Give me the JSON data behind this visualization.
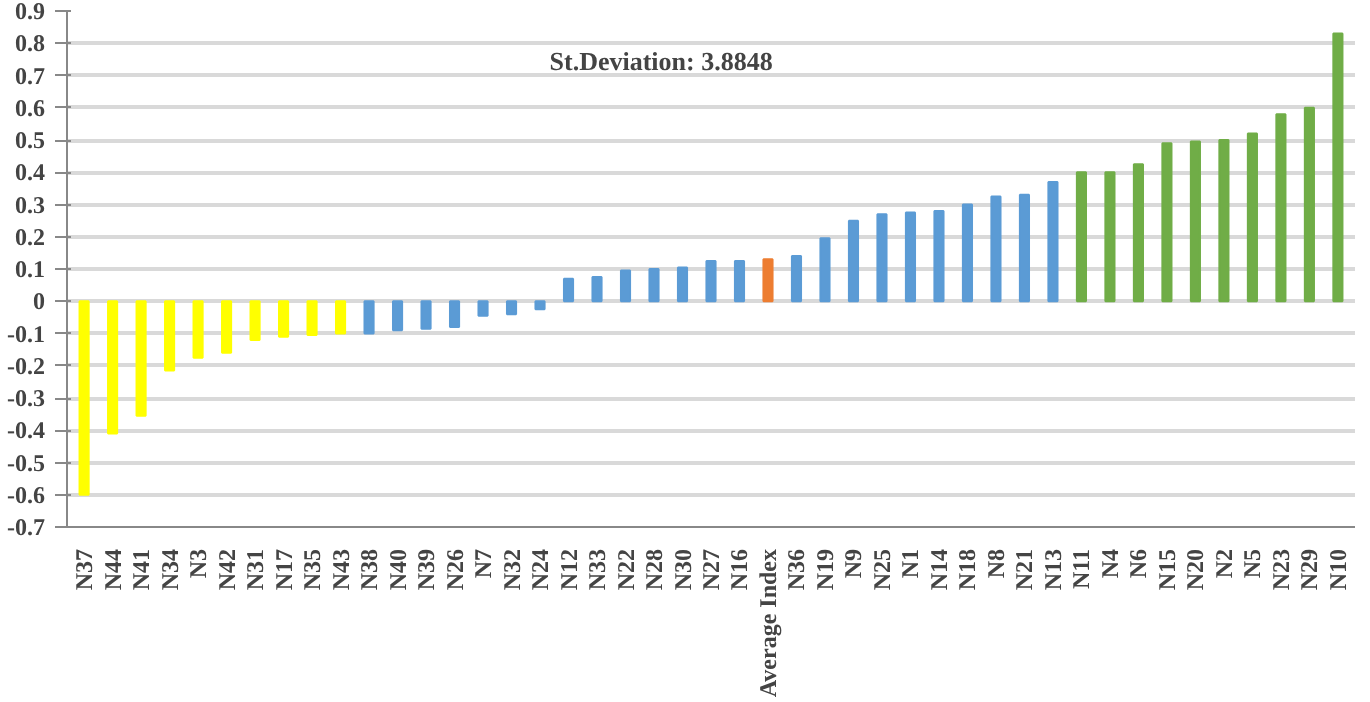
{
  "chart_data": {
    "type": "bar",
    "categories": [
      "N37",
      "N44",
      "N41",
      "N34",
      "N3",
      "N42",
      "N31",
      "N17",
      "N35",
      "N43",
      "N38",
      "N40",
      "N39",
      "N26",
      "N7",
      "N32",
      "N24",
      "N12",
      "N33",
      "N22",
      "N28",
      "N30",
      "N27",
      "N16",
      "Average Index",
      "N36",
      "N19",
      "N9",
      "N25",
      "N1",
      "N14",
      "N18",
      "N8",
      "N21",
      "N13",
      "N11",
      "N4",
      "N6",
      "N15",
      "N20",
      "N2",
      "N5",
      "N23",
      "N29",
      "N10"
    ],
    "values": [
      -0.6,
      -0.41,
      -0.355,
      -0.215,
      -0.175,
      -0.16,
      -0.12,
      -0.11,
      -0.105,
      -0.1,
      -0.1,
      -0.09,
      -0.085,
      -0.08,
      -0.045,
      -0.04,
      -0.025,
      0.07,
      0.075,
      0.095,
      0.1,
      0.105,
      0.125,
      0.125,
      0.13,
      0.14,
      0.195,
      0.25,
      0.27,
      0.275,
      0.28,
      0.3,
      0.325,
      0.33,
      0.37,
      0.4,
      0.4,
      0.425,
      0.49,
      0.495,
      0.5,
      0.52,
      0.58,
      0.6,
      0.83
    ],
    "colors": [
      "#ffff00",
      "#ffff00",
      "#ffff00",
      "#ffff00",
      "#ffff00",
      "#ffff00",
      "#ffff00",
      "#ffff00",
      "#ffff00",
      "#ffff00",
      "#5b9bd5",
      "#5b9bd5",
      "#5b9bd5",
      "#5b9bd5",
      "#5b9bd5",
      "#5b9bd5",
      "#5b9bd5",
      "#5b9bd5",
      "#5b9bd5",
      "#5b9bd5",
      "#5b9bd5",
      "#5b9bd5",
      "#5b9bd5",
      "#5b9bd5",
      "#ed7d31",
      "#5b9bd5",
      "#5b9bd5",
      "#5b9bd5",
      "#5b9bd5",
      "#5b9bd5",
      "#5b9bd5",
      "#5b9bd5",
      "#5b9bd5",
      "#5b9bd5",
      "#5b9bd5",
      "#70ad47",
      "#70ad47",
      "#70ad47",
      "#70ad47",
      "#70ad47",
      "#70ad47",
      "#70ad47",
      "#70ad47",
      "#70ad47",
      "#70ad47"
    ],
    "ylim": [
      -0.7,
      0.9
    ],
    "yticks": [
      {
        "value": -0.7,
        "label": "-0.7"
      },
      {
        "value": -0.6,
        "label": "-0.6"
      },
      {
        "value": -0.5,
        "label": "-0.5"
      },
      {
        "value": -0.4,
        "label": "-0.4"
      },
      {
        "value": -0.3,
        "label": "-0.3"
      },
      {
        "value": -0.2,
        "label": "-0.2"
      },
      {
        "value": -0.1,
        "label": "-0.1"
      },
      0,
      0.1,
      0.2,
      0.3,
      0.4,
      0.5,
      0.6,
      0.7,
      0.8,
      0.9
    ],
    "grid": "y",
    "annotations": [
      "St.Deviation: 3.8848"
    ]
  }
}
